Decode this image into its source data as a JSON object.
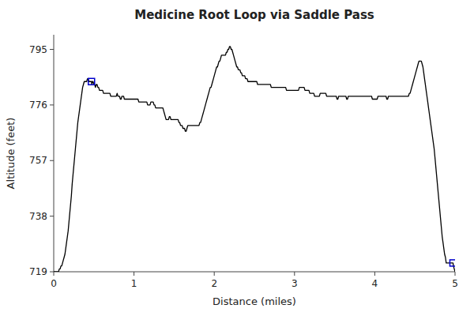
{
  "chart_data": {
    "type": "line",
    "title": "Medicine Root Loop via Saddle Pass",
    "xlabel": "Distance (miles)",
    "ylabel": "Altitude (feet)",
    "xlim": [
      0,
      5
    ],
    "ylim": [
      719,
      800
    ],
    "xticks": [
      0,
      1,
      2,
      3,
      4,
      5
    ],
    "yticks": [
      719,
      738,
      757,
      776,
      795
    ],
    "grid": false,
    "x": [
      0.0,
      0.01,
      0.02,
      0.03,
      0.04,
      0.05,
      0.06,
      0.07,
      0.08,
      0.09,
      0.1,
      0.11,
      0.12,
      0.13,
      0.14,
      0.15,
      0.16,
      0.17,
      0.18,
      0.19,
      0.2,
      0.21,
      0.22,
      0.23,
      0.24,
      0.25,
      0.26,
      0.27,
      0.28,
      0.29,
      0.3,
      0.31,
      0.32,
      0.33,
      0.34,
      0.35,
      0.36,
      0.37,
      0.38,
      0.39,
      0.4,
      0.41,
      0.42,
      0.43,
      0.44,
      0.45,
      0.46,
      0.47,
      0.475,
      0.48,
      0.49,
      0.5,
      0.51,
      0.52,
      0.53,
      0.54,
      0.55,
      0.56,
      0.57,
      0.58,
      0.59,
      0.6,
      0.61,
      0.62,
      0.63,
      0.64,
      0.65,
      0.66,
      0.67,
      0.68,
      0.69,
      0.7,
      0.71,
      0.72,
      0.73,
      0.74,
      0.75,
      0.76,
      0.77,
      0.78,
      0.79,
      0.8,
      0.81,
      0.82,
      0.83,
      0.84,
      0.85,
      0.86,
      0.87,
      0.88,
      0.89,
      0.9,
      0.91,
      0.92,
      0.93,
      0.94,
      0.95,
      0.96,
      0.97,
      0.98,
      0.99,
      1.0,
      1.01,
      1.02,
      1.03,
      1.04,
      1.05,
      1.06,
      1.07,
      1.08,
      1.09,
      1.1,
      1.11,
      1.12,
      1.13,
      1.14,
      1.15,
      1.16,
      1.17,
      1.18,
      1.19,
      1.2,
      1.21,
      1.22,
      1.23,
      1.24,
      1.25,
      1.26,
      1.27,
      1.28,
      1.29,
      1.3,
      1.31,
      1.32,
      1.33,
      1.34,
      1.35,
      1.36,
      1.37,
      1.38,
      1.39,
      1.4,
      1.41,
      1.42,
      1.43,
      1.44,
      1.45,
      1.46,
      1.47,
      1.48,
      1.49,
      1.5,
      1.51,
      1.52,
      1.53,
      1.54,
      1.55,
      1.56,
      1.57,
      1.58,
      1.59,
      1.6,
      1.61,
      1.62,
      1.63,
      1.64,
      1.65,
      1.66,
      1.67,
      1.68,
      1.69,
      1.7,
      1.71,
      1.72,
      1.73,
      1.74,
      1.75,
      1.76,
      1.77,
      1.78,
      1.79,
      1.8,
      1.81,
      1.82,
      1.83,
      1.84,
      1.85,
      1.86,
      1.87,
      1.88,
      1.89,
      1.9,
      1.91,
      1.92,
      1.93,
      1.94,
      1.95,
      1.96,
      1.97,
      1.98,
      1.99,
      2.0,
      2.01,
      2.02,
      2.03,
      2.04,
      2.05,
      2.06,
      2.07,
      2.08,
      2.09,
      2.1,
      2.11,
      2.12,
      2.13,
      2.14,
      2.15,
      2.16,
      2.17,
      2.18,
      2.19,
      2.2,
      2.21,
      2.22,
      2.23,
      2.24,
      2.25,
      2.26,
      2.27,
      2.28,
      2.29,
      2.3,
      2.31,
      2.32,
      2.33,
      2.34,
      2.35,
      2.36,
      2.37,
      2.38,
      2.39,
      2.4,
      2.41,
      2.42,
      2.43,
      2.44,
      2.45,
      2.46,
      2.47,
      2.48,
      2.49,
      2.5,
      2.51,
      2.52,
      2.53,
      2.54,
      2.55,
      2.56,
      2.57,
      2.58,
      2.59,
      2.6,
      2.61,
      2.62,
      2.63,
      2.64,
      2.65,
      2.66,
      2.67,
      2.68,
      2.69,
      2.7,
      2.71,
      2.72,
      2.73,
      2.74,
      2.75,
      2.76,
      2.77,
      2.78,
      2.79,
      2.8,
      2.81,
      2.82,
      2.83,
      2.84,
      2.85,
      2.86,
      2.87,
      2.88,
      2.89,
      2.9,
      2.91,
      2.92,
      2.93,
      2.94,
      2.95,
      2.96,
      2.97,
      2.98,
      2.99,
      3.0,
      3.01,
      3.02,
      3.03,
      3.04,
      3.05,
      3.06,
      3.07,
      3.08,
      3.09,
      3.1,
      3.11,
      3.12,
      3.13,
      3.14,
      3.15,
      3.16,
      3.17,
      3.18,
      3.19,
      3.2,
      3.21,
      3.22,
      3.23,
      3.24,
      3.25,
      3.26,
      3.27,
      3.28,
      3.29,
      3.3,
      3.31,
      3.32,
      3.33,
      3.34,
      3.35,
      3.36,
      3.37,
      3.38,
      3.39,
      3.4,
      3.41,
      3.42,
      3.43,
      3.44,
      3.45,
      3.46,
      3.47,
      3.48,
      3.49,
      3.5,
      3.51,
      3.52,
      3.53,
      3.54,
      3.55,
      3.56,
      3.57,
      3.58,
      3.59,
      3.6,
      3.61,
      3.62,
      3.63,
      3.64,
      3.65,
      3.66,
      3.67,
      3.68,
      3.69,
      3.7,
      3.71,
      3.72,
      3.73,
      3.74,
      3.75,
      3.76,
      3.77,
      3.78,
      3.79,
      3.8,
      3.81,
      3.82,
      3.83,
      3.84,
      3.85,
      3.86,
      3.87,
      3.88,
      3.89,
      3.9,
      3.91,
      3.92,
      3.93,
      3.94,
      3.95,
      3.96,
      3.97,
      3.98,
      3.99,
      4.0,
      4.01,
      4.02,
      4.03,
      4.04,
      4.05,
      4.06,
      4.07,
      4.08,
      4.09,
      4.1,
      4.11,
      4.12,
      4.13,
      4.14,
      4.15,
      4.16,
      4.17,
      4.18,
      4.19,
      4.2,
      4.21,
      4.22,
      4.23,
      4.24,
      4.25,
      4.26,
      4.27,
      4.28,
      4.29,
      4.3,
      4.31,
      4.32,
      4.33,
      4.34,
      4.35,
      4.36,
      4.37,
      4.38,
      4.39,
      4.4,
      4.41,
      4.42,
      4.43,
      4.44,
      4.45,
      4.46,
      4.47,
      4.48,
      4.49,
      4.5,
      4.51,
      4.52,
      4.53,
      4.54,
      4.55,
      4.56,
      4.57,
      4.58,
      4.59,
      4.6,
      4.61,
      4.62,
      4.63,
      4.64,
      4.65,
      4.66,
      4.67,
      4.68,
      4.69,
      4.7,
      4.71,
      4.72,
      4.73,
      4.74,
      4.75,
      4.76,
      4.77,
      4.78,
      4.79,
      4.8,
      4.81,
      4.82,
      4.83,
      4.84,
      4.85,
      4.86,
      4.87,
      4.88,
      4.89,
      4.9,
      4.91,
      4.92,
      4.93,
      4.94,
      4.95,
      4.96,
      4.97,
      4.975,
      4.98,
      4.99,
      5.0
    ],
    "series": [
      {
        "type": "line",
        "color": "#000000",
        "values": [
          719,
          719,
          719,
          719,
          719,
          719,
          719,
          720,
          720,
          721,
          721,
          722,
          723,
          724,
          725,
          727,
          729,
          731,
          733,
          736,
          739,
          742,
          745,
          749,
          752,
          755,
          758,
          761,
          764,
          767,
          770,
          772,
          774,
          776,
          778,
          780,
          782,
          783,
          784,
          784,
          784,
          784,
          785,
          785,
          784,
          784,
          784,
          784,
          783,
          784,
          784,
          783,
          783,
          782,
          783,
          783,
          782,
          782,
          781,
          781,
          781,
          781,
          781,
          780,
          780,
          780,
          780,
          780,
          780,
          780,
          780,
          780,
          779,
          779,
          779,
          779,
          779,
          779,
          779,
          779,
          780,
          779,
          779,
          779,
          778,
          778,
          779,
          779,
          779,
          778,
          778,
          778,
          778,
          778,
          778,
          778,
          778,
          778,
          778,
          778,
          778,
          778,
          778,
          778,
          778,
          778,
          778,
          777,
          777,
          777,
          777,
          777,
          777,
          777,
          777,
          777,
          777,
          777,
          776,
          776,
          776,
          776,
          777,
          777,
          777,
          777,
          776,
          776,
          775,
          775,
          775,
          775,
          775,
          775,
          775,
          775,
          775,
          775,
          774,
          773,
          772,
          771,
          771,
          771,
          771,
          772,
          772,
          771,
          771,
          771,
          771,
          771,
          771,
          771,
          771,
          771,
          771,
          770,
          770,
          769,
          769,
          769,
          768,
          768,
          768,
          767,
          767,
          768,
          769,
          769,
          769,
          769,
          769,
          769,
          769,
          769,
          769,
          769,
          769,
          769,
          769,
          769,
          769,
          770,
          770,
          771,
          772,
          773,
          774,
          775,
          776,
          777,
          778,
          779,
          780,
          781,
          782,
          782,
          783,
          784,
          785,
          786,
          787,
          788,
          789,
          789,
          790,
          791,
          791,
          792,
          793,
          793,
          793,
          793,
          793,
          793,
          794,
          794,
          795,
          795,
          796,
          796,
          795,
          795,
          794,
          793,
          792,
          791,
          790,
          789,
          789,
          788,
          788,
          788,
          787,
          787,
          786,
          786,
          786,
          786,
          785,
          785,
          785,
          784,
          784,
          784,
          784,
          784,
          784,
          784,
          784,
          784,
          784,
          784,
          784,
          783,
          783,
          783,
          783,
          783,
          783,
          783,
          783,
          783,
          783,
          783,
          783,
          783,
          783,
          783,
          783,
          783,
          782,
          782,
          782,
          782,
          782,
          782,
          782,
          782,
          782,
          782,
          782,
          782,
          782,
          782,
          782,
          782,
          782,
          782,
          782,
          781,
          781,
          781,
          781,
          781,
          781,
          781,
          781,
          781,
          781,
          781,
          781,
          781,
          781,
          781,
          781,
          782,
          782,
          782,
          782,
          782,
          782,
          782,
          781,
          781,
          781,
          781,
          781,
          781,
          780,
          780,
          780,
          780,
          780,
          780,
          779,
          779,
          779,
          779,
          779,
          779,
          779,
          780,
          780,
          780,
          780,
          780,
          780,
          780,
          780,
          779,
          779,
          779,
          779,
          779,
          779,
          779,
          779,
          779,
          779,
          779,
          779,
          779,
          778,
          778,
          779,
          779,
          779,
          779,
          779,
          779,
          779,
          779,
          779,
          779,
          778,
          778,
          779,
          779,
          779,
          779,
          779,
          779,
          779,
          779,
          779,
          779,
          779,
          779,
          779,
          779,
          779,
          779,
          779,
          779,
          779,
          779,
          779,
          779,
          779,
          779,
          779,
          779,
          779,
          779,
          779,
          779,
          778,
          778,
          778,
          778,
          778,
          778,
          778,
          779,
          779,
          779,
          779,
          779,
          779,
          779,
          779,
          779,
          779,
          779,
          778,
          778,
          779,
          779,
          779,
          779,
          779,
          779,
          779,
          779,
          779,
          779,
          779,
          779,
          779,
          779,
          779,
          779,
          779,
          779,
          779,
          779,
          779,
          779,
          779,
          779,
          779,
          779,
          780,
          780,
          781,
          782,
          783,
          784,
          785,
          786,
          787,
          788,
          789,
          790,
          791,
          791,
          791,
          791,
          790,
          789,
          787,
          785,
          783,
          781,
          779,
          777,
          775,
          773,
          771,
          769,
          767,
          765,
          763,
          761,
          758,
          755,
          752,
          749,
          746,
          743,
          740,
          737,
          734,
          731,
          729,
          727,
          725,
          724,
          722,
          722,
          722,
          722,
          722,
          722,
          722,
          722,
          722,
          722,
          721,
          720,
          719
        ]
      },
      {
        "type": "scatter",
        "marker": "square",
        "color": "#0000cc",
        "x": [
          0.47,
          4.975
        ],
        "values": [
          784,
          722
        ]
      }
    ]
  }
}
